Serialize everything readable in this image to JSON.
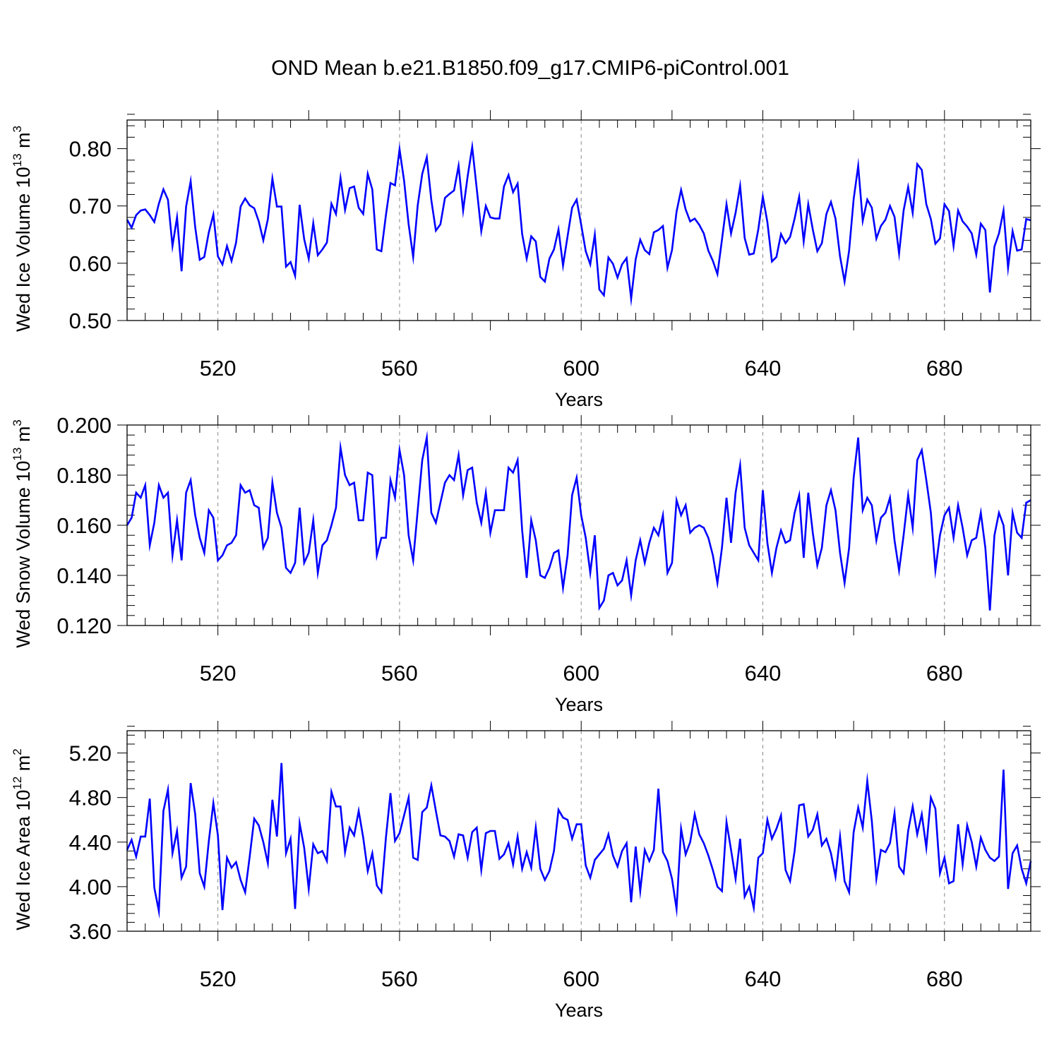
{
  "title": "OND Mean b.e21.B1850.f09_g17.CMIP6-piControl.001",
  "x_start": 500,
  "x_end": 699,
  "xlim": [
    500,
    699
  ],
  "xticks": [
    520,
    560,
    600,
    640,
    680
  ],
  "xticklabels": [
    "520",
    "560",
    "600",
    "640",
    "680"
  ],
  "colors": {
    "series": "#0000ff",
    "axis": "#000000",
    "grid": "#888888"
  },
  "chart_data": [
    {
      "type": "line",
      "ylabel_text": "Wed Ice Volume 10",
      "ylabel_exp": "13",
      "ylabel_unit": " m",
      "ylabel_unit_exp": "3",
      "xlabel": "Years",
      "ylim": [
        0.5,
        0.85
      ],
      "yticks": [
        0.5,
        0.6,
        0.7,
        0.8
      ],
      "yticklabels": [
        "0.50",
        "0.60",
        "0.70",
        "0.80"
      ],
      "values": [
        0.676,
        0.662,
        0.684,
        0.692,
        0.694,
        0.684,
        0.672,
        0.704,
        0.729,
        0.711,
        0.63,
        0.68,
        0.586,
        0.699,
        0.743,
        0.663,
        0.606,
        0.611,
        0.654,
        0.685,
        0.612,
        0.598,
        0.63,
        0.604,
        0.636,
        0.699,
        0.713,
        0.701,
        0.696,
        0.673,
        0.64,
        0.677,
        0.748,
        0.699,
        0.699,
        0.594,
        0.602,
        0.578,
        0.702,
        0.642,
        0.608,
        0.67,
        0.614,
        0.624,
        0.636,
        0.704,
        0.686,
        0.749,
        0.693,
        0.731,
        0.734,
        0.697,
        0.686,
        0.756,
        0.729,
        0.624,
        0.621,
        0.684,
        0.74,
        0.736,
        0.799,
        0.744,
        0.668,
        0.611,
        0.701,
        0.756,
        0.785,
        0.71,
        0.657,
        0.668,
        0.714,
        0.721,
        0.727,
        0.77,
        0.692,
        0.752,
        0.803,
        0.73,
        0.656,
        0.7,
        0.68,
        0.678,
        0.678,
        0.734,
        0.754,
        0.724,
        0.739,
        0.651,
        0.608,
        0.647,
        0.638,
        0.576,
        0.568,
        0.608,
        0.624,
        0.659,
        0.596,
        0.647,
        0.697,
        0.711,
        0.667,
        0.621,
        0.598,
        0.65,
        0.554,
        0.544,
        0.61,
        0.599,
        0.575,
        0.598,
        0.609,
        0.538,
        0.607,
        0.641,
        0.623,
        0.616,
        0.654,
        0.658,
        0.665,
        0.592,
        0.623,
        0.69,
        0.728,
        0.694,
        0.673,
        0.678,
        0.667,
        0.652,
        0.622,
        0.604,
        0.581,
        0.641,
        0.703,
        0.652,
        0.688,
        0.735,
        0.644,
        0.615,
        0.617,
        0.659,
        0.716,
        0.672,
        0.603,
        0.611,
        0.651,
        0.635,
        0.646,
        0.678,
        0.716,
        0.638,
        0.703,
        0.659,
        0.621,
        0.635,
        0.686,
        0.707,
        0.678,
        0.612,
        0.568,
        0.622,
        0.712,
        0.77,
        0.674,
        0.711,
        0.697,
        0.643,
        0.665,
        0.676,
        0.7,
        0.681,
        0.617,
        0.692,
        0.733,
        0.688,
        0.773,
        0.763,
        0.703,
        0.677,
        0.634,
        0.643,
        0.703,
        0.691,
        0.63,
        0.692,
        0.673,
        0.664,
        0.652,
        0.615,
        0.669,
        0.658,
        0.549,
        0.629,
        0.652,
        0.692,
        0.592,
        0.656,
        0.622,
        0.624,
        0.677,
        0.675
      ]
    },
    {
      "type": "line",
      "ylabel_text": "Wed Snow Volume 10",
      "ylabel_exp": "13",
      "ylabel_unit": " m",
      "ylabel_unit_exp": "3",
      "xlabel": "Years",
      "ylim": [
        0.12,
        0.2
      ],
      "yticks": [
        0.12,
        0.14,
        0.16,
        0.18,
        0.2
      ],
      "yticklabels": [
        "0.120",
        "0.140",
        "0.160",
        "0.180",
        "0.200"
      ],
      "values": [
        0.16,
        0.163,
        0.173,
        0.171,
        0.176,
        0.152,
        0.161,
        0.176,
        0.171,
        0.173,
        0.148,
        0.162,
        0.146,
        0.173,
        0.178,
        0.164,
        0.155,
        0.149,
        0.166,
        0.163,
        0.146,
        0.148,
        0.152,
        0.153,
        0.156,
        0.176,
        0.173,
        0.174,
        0.168,
        0.167,
        0.151,
        0.155,
        0.177,
        0.165,
        0.159,
        0.143,
        0.141,
        0.145,
        0.167,
        0.145,
        0.149,
        0.162,
        0.141,
        0.152,
        0.154,
        0.16,
        0.167,
        0.191,
        0.18,
        0.176,
        0.177,
        0.162,
        0.162,
        0.181,
        0.18,
        0.148,
        0.155,
        0.155,
        0.178,
        0.171,
        0.19,
        0.18,
        0.156,
        0.146,
        0.166,
        0.186,
        0.195,
        0.165,
        0.161,
        0.169,
        0.177,
        0.18,
        0.178,
        0.188,
        0.172,
        0.182,
        0.183,
        0.169,
        0.161,
        0.173,
        0.157,
        0.166,
        0.166,
        0.166,
        0.183,
        0.181,
        0.186,
        0.158,
        0.139,
        0.162,
        0.154,
        0.14,
        0.139,
        0.143,
        0.149,
        0.15,
        0.135,
        0.148,
        0.172,
        0.179,
        0.164,
        0.155,
        0.141,
        0.156,
        0.127,
        0.13,
        0.14,
        0.141,
        0.136,
        0.138,
        0.146,
        0.132,
        0.146,
        0.154,
        0.145,
        0.153,
        0.159,
        0.156,
        0.164,
        0.141,
        0.145,
        0.17,
        0.164,
        0.168,
        0.157,
        0.159,
        0.16,
        0.159,
        0.155,
        0.148,
        0.137,
        0.151,
        0.171,
        0.153,
        0.173,
        0.184,
        0.159,
        0.152,
        0.149,
        0.146,
        0.174,
        0.153,
        0.141,
        0.151,
        0.158,
        0.153,
        0.154,
        0.165,
        0.172,
        0.147,
        0.173,
        0.157,
        0.144,
        0.151,
        0.168,
        0.174,
        0.166,
        0.149,
        0.137,
        0.151,
        0.179,
        0.195,
        0.166,
        0.171,
        0.168,
        0.154,
        0.163,
        0.165,
        0.171,
        0.154,
        0.142,
        0.156,
        0.172,
        0.159,
        0.186,
        0.19,
        0.178,
        0.165,
        0.142,
        0.156,
        0.164,
        0.167,
        0.155,
        0.168,
        0.159,
        0.148,
        0.154,
        0.155,
        0.165,
        0.151,
        0.126,
        0.156,
        0.165,
        0.16,
        0.14,
        0.165,
        0.157,
        0.155,
        0.169,
        0.17
      ]
    },
    {
      "type": "line",
      "ylabel_text": "Wed Ice Area 10",
      "ylabel_exp": "12",
      "ylabel_unit": " m",
      "ylabel_unit_exp": "2",
      "xlabel": "Years",
      "ylim": [
        3.6,
        5.4
      ],
      "yticks": [
        3.6,
        4.0,
        4.4,
        4.8,
        5.2
      ],
      "yticklabels": [
        "3.60",
        "4.00",
        "4.40",
        "4.80",
        "5.20"
      ],
      "values": [
        4.33,
        4.42,
        4.27,
        4.45,
        4.45,
        4.79,
        3.99,
        3.78,
        4.68,
        4.87,
        4.3,
        4.5,
        4.08,
        4.18,
        4.93,
        4.65,
        4.12,
        4.0,
        4.41,
        4.75,
        4.46,
        3.79,
        4.26,
        4.17,
        4.22,
        4.06,
        3.95,
        4.27,
        4.61,
        4.55,
        4.4,
        4.21,
        4.78,
        4.45,
        5.11,
        4.3,
        4.43,
        3.8,
        4.57,
        4.35,
        3.98,
        4.38,
        4.3,
        4.32,
        4.23,
        4.85,
        4.72,
        4.72,
        4.31,
        4.53,
        4.46,
        4.68,
        4.44,
        4.14,
        4.3,
        4.01,
        3.95,
        4.44,
        4.84,
        4.41,
        4.48,
        4.64,
        4.8,
        4.26,
        4.24,
        4.67,
        4.71,
        4.91,
        4.68,
        4.46,
        4.45,
        4.41,
        4.27,
        4.47,
        4.46,
        4.26,
        4.49,
        4.53,
        4.15,
        4.48,
        4.5,
        4.5,
        4.25,
        4.29,
        4.39,
        4.2,
        4.45,
        4.16,
        4.31,
        4.17,
        4.53,
        4.16,
        4.06,
        4.14,
        4.32,
        4.69,
        4.62,
        4.6,
        4.43,
        4.56,
        4.56,
        4.19,
        4.08,
        4.24,
        4.29,
        4.34,
        4.47,
        4.28,
        4.18,
        4.32,
        4.39,
        3.86,
        4.36,
        3.96,
        4.33,
        4.23,
        4.33,
        4.88,
        4.31,
        4.23,
        4.07,
        3.8,
        4.52,
        4.29,
        4.4,
        4.65,
        4.47,
        4.39,
        4.28,
        4.15,
        4.0,
        3.96,
        4.58,
        4.33,
        4.07,
        4.43,
        3.91,
        4.0,
        3.81,
        4.26,
        4.3,
        4.6,
        4.43,
        4.52,
        4.64,
        4.15,
        4.05,
        4.32,
        4.73,
        4.74,
        4.45,
        4.51,
        4.65,
        4.37,
        4.43,
        4.3,
        4.09,
        4.45,
        4.05,
        3.95,
        4.49,
        4.71,
        4.53,
        4.95,
        4.59,
        4.07,
        4.33,
        4.31,
        4.39,
        4.66,
        4.18,
        4.12,
        4.5,
        4.72,
        4.47,
        4.65,
        4.35,
        4.8,
        4.7,
        4.12,
        4.26,
        4.03,
        4.05,
        4.56,
        4.2,
        4.55,
        4.4,
        4.18,
        4.44,
        4.33,
        4.26,
        4.23,
        4.27,
        5.05,
        3.98,
        4.3,
        4.37,
        4.16,
        4.03,
        4.23
      ]
    }
  ]
}
